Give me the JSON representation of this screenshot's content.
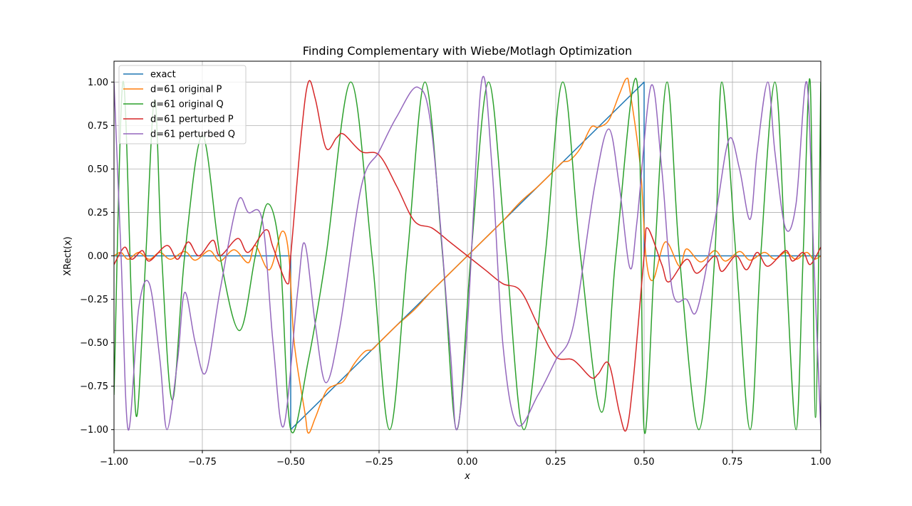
{
  "chart_data": {
    "type": "line",
    "title": "Finding Complementary with Wiebe/Motlagh Optimization",
    "xlabel": "x",
    "ylabel": "XRect(x)",
    "xlim": [
      -1.0,
      1.0
    ],
    "ylim": [
      -1.12,
      1.12
    ],
    "xticks": [
      -1.0,
      -0.75,
      -0.5,
      -0.25,
      0.0,
      0.25,
      0.5,
      0.75,
      1.0
    ],
    "xtick_labels": [
      "−1.00",
      "−0.75",
      "−0.50",
      "−0.25",
      "0.00",
      "0.25",
      "0.50",
      "0.75",
      "1.00"
    ],
    "yticks": [
      -1.0,
      -0.75,
      -0.5,
      -0.25,
      0.0,
      0.25,
      0.5,
      0.75,
      1.0
    ],
    "ytick_labels": [
      "−1.00",
      "−0.75",
      "−0.50",
      "−0.25",
      "0.00",
      "0.25",
      "0.50",
      "0.75",
      "1.00"
    ],
    "grid": true,
    "legend_position": "top-left",
    "series": [
      {
        "name": "exact",
        "color": "#1f77b4",
        "points": [
          [
            -1.0,
            0
          ],
          [
            -0.5,
            0
          ],
          [
            -0.5,
            -1.0
          ],
          [
            0.5,
            1.0
          ],
          [
            0.5,
            0
          ],
          [
            1.0,
            0
          ]
        ]
      },
      {
        "name": "d=61 original P",
        "color": "#ff7f0e",
        "points": [
          [
            -1.0,
            0
          ],
          [
            -0.98,
            0.02
          ],
          [
            -0.96,
            -0.02
          ],
          [
            -0.93,
            0.02
          ],
          [
            -0.9,
            -0.02
          ],
          [
            -0.87,
            0.02
          ],
          [
            -0.84,
            -0.02
          ],
          [
            -0.8,
            0.025
          ],
          [
            -0.77,
            -0.025
          ],
          [
            -0.73,
            0.03
          ],
          [
            -0.7,
            -0.03
          ],
          [
            -0.66,
            0.035
          ],
          [
            -0.62,
            -0.04
          ],
          [
            -0.6,
            0.06
          ],
          [
            -0.56,
            -0.08
          ],
          [
            -0.525,
            0.14
          ],
          [
            -0.505,
            0.0
          ],
          [
            -0.49,
            -0.5
          ],
          [
            -0.46,
            -0.9
          ],
          [
            -0.45,
            -1.02
          ],
          [
            -0.43,
            -0.93
          ],
          [
            -0.4,
            -0.78
          ],
          [
            -0.37,
            -0.74
          ],
          [
            -0.35,
            -0.72
          ],
          [
            -0.32,
            -0.62
          ],
          [
            -0.29,
            -0.55
          ],
          [
            -0.27,
            -0.54
          ],
          [
            -0.25,
            -0.5
          ],
          [
            -0.2,
            -0.4
          ],
          [
            -0.15,
            -0.31
          ],
          [
            -0.1,
            -0.2
          ],
          [
            -0.05,
            -0.1
          ],
          [
            0.0,
            0.0
          ],
          [
            0.05,
            0.1
          ],
          [
            0.1,
            0.2
          ],
          [
            0.15,
            0.31
          ],
          [
            0.2,
            0.4
          ],
          [
            0.25,
            0.5
          ],
          [
            0.27,
            0.54
          ],
          [
            0.29,
            0.55
          ],
          [
            0.32,
            0.62
          ],
          [
            0.35,
            0.74
          ],
          [
            0.37,
            0.74
          ],
          [
            0.4,
            0.78
          ],
          [
            0.43,
            0.93
          ],
          [
            0.45,
            1.02
          ],
          [
            0.46,
            0.95
          ],
          [
            0.49,
            0.5
          ],
          [
            0.505,
            0.0
          ],
          [
            0.525,
            -0.14
          ],
          [
            0.56,
            0.08
          ],
          [
            0.6,
            -0.06
          ],
          [
            0.62,
            0.04
          ],
          [
            0.66,
            -0.035
          ],
          [
            0.7,
            0.03
          ],
          [
            0.73,
            -0.03
          ],
          [
            0.77,
            0.025
          ],
          [
            0.8,
            -0.025
          ],
          [
            0.84,
            0.02
          ],
          [
            0.87,
            -0.02
          ],
          [
            0.9,
            0.02
          ],
          [
            0.93,
            -0.02
          ],
          [
            0.96,
            0.02
          ],
          [
            0.98,
            -0.02
          ],
          [
            1.0,
            0
          ]
        ]
      },
      {
        "name": "d=61 original Q",
        "color": "#2ca02c",
        "points": [
          [
            -1.0,
            -0.8
          ],
          [
            -0.975,
            1.0
          ],
          [
            -0.95,
            -0.3
          ],
          [
            -0.935,
            -0.92
          ],
          [
            -0.91,
            0.0
          ],
          [
            -0.885,
            0.9
          ],
          [
            -0.865,
            0.0
          ],
          [
            -0.835,
            -0.83
          ],
          [
            -0.8,
            0.0
          ],
          [
            -0.75,
            0.69
          ],
          [
            -0.7,
            0.0
          ],
          [
            -0.645,
            -0.43
          ],
          [
            -0.6,
            0.0
          ],
          [
            -0.565,
            0.3
          ],
          [
            -0.53,
            0.0
          ],
          [
            -0.5,
            -1.0
          ],
          [
            -0.45,
            -0.6
          ],
          [
            -0.4,
            0.0
          ],
          [
            -0.33,
            1.0
          ],
          [
            -0.27,
            0.0
          ],
          [
            -0.22,
            -1.0
          ],
          [
            -0.17,
            0.0
          ],
          [
            -0.12,
            1.0
          ],
          [
            -0.07,
            0.0
          ],
          [
            -0.03,
            -1.0
          ],
          [
            0.01,
            0.0
          ],
          [
            0.06,
            1.0
          ],
          [
            0.11,
            0.0
          ],
          [
            0.16,
            -1.0
          ],
          [
            0.22,
            0.0
          ],
          [
            0.27,
            1.0
          ],
          [
            0.32,
            0.0
          ],
          [
            0.38,
            -0.9
          ],
          [
            0.42,
            0.0
          ],
          [
            0.48,
            1.0
          ],
          [
            0.5,
            -1.0
          ],
          [
            0.53,
            0.0
          ],
          [
            0.565,
            1.0
          ],
          [
            0.6,
            0.0
          ],
          [
            0.655,
            -1.0
          ],
          [
            0.7,
            0.0
          ],
          [
            0.72,
            1.0
          ],
          [
            0.76,
            0.0
          ],
          [
            0.8,
            -1.0
          ],
          [
            0.83,
            0.0
          ],
          [
            0.87,
            1.0
          ],
          [
            0.9,
            0.0
          ],
          [
            0.93,
            -1.0
          ],
          [
            0.95,
            0.0
          ],
          [
            0.97,
            1.0
          ],
          [
            0.985,
            -0.93
          ],
          [
            1.0,
            1.0
          ]
        ]
      },
      {
        "name": "d=61 perturbed P",
        "color": "#d62728",
        "points": [
          [
            -1.0,
            -0.05
          ],
          [
            -0.97,
            0.05
          ],
          [
            -0.95,
            -0.02
          ],
          [
            -0.92,
            0.03
          ],
          [
            -0.9,
            -0.03
          ],
          [
            -0.85,
            0.06
          ],
          [
            -0.82,
            -0.02
          ],
          [
            -0.79,
            0.08
          ],
          [
            -0.76,
            0.0
          ],
          [
            -0.72,
            0.09
          ],
          [
            -0.7,
            0.0
          ],
          [
            -0.65,
            0.1
          ],
          [
            -0.62,
            0.02
          ],
          [
            -0.57,
            0.15
          ],
          [
            -0.55,
            0.05
          ],
          [
            -0.51,
            -0.16
          ],
          [
            -0.5,
            0.0
          ],
          [
            -0.47,
            0.7
          ],
          [
            -0.45,
            1.0
          ],
          [
            -0.43,
            0.9
          ],
          [
            -0.4,
            0.62
          ],
          [
            -0.37,
            0.68
          ],
          [
            -0.35,
            0.7
          ],
          [
            -0.3,
            0.6
          ],
          [
            -0.25,
            0.58
          ],
          [
            -0.2,
            0.4
          ],
          [
            -0.15,
            0.2
          ],
          [
            -0.1,
            0.16
          ],
          [
            -0.05,
            0.08
          ],
          [
            0.0,
            0.0
          ],
          [
            0.05,
            -0.08
          ],
          [
            0.1,
            -0.16
          ],
          [
            0.15,
            -0.2
          ],
          [
            0.2,
            -0.4
          ],
          [
            0.25,
            -0.58
          ],
          [
            0.3,
            -0.6
          ],
          [
            0.35,
            -0.7
          ],
          [
            0.37,
            -0.68
          ],
          [
            0.4,
            -0.62
          ],
          [
            0.43,
            -0.9
          ],
          [
            0.45,
            -1.0
          ],
          [
            0.47,
            -0.7
          ],
          [
            0.5,
            0.0
          ],
          [
            0.51,
            0.16
          ],
          [
            0.55,
            -0.05
          ],
          [
            0.57,
            -0.15
          ],
          [
            0.62,
            -0.02
          ],
          [
            0.65,
            -0.1
          ],
          [
            0.7,
            0.0
          ],
          [
            0.72,
            -0.09
          ],
          [
            0.76,
            0.0
          ],
          [
            0.79,
            -0.08
          ],
          [
            0.82,
            0.02
          ],
          [
            0.85,
            -0.06
          ],
          [
            0.9,
            0.03
          ],
          [
            0.92,
            -0.03
          ],
          [
            0.95,
            0.02
          ],
          [
            0.97,
            -0.05
          ],
          [
            1.0,
            0.05
          ]
        ]
      },
      {
        "name": "d=61 perturbed Q",
        "color": "#9467bd",
        "points": [
          [
            -1.0,
            1.0
          ],
          [
            -0.98,
            0.0
          ],
          [
            -0.96,
            -1.0
          ],
          [
            -0.93,
            -0.3
          ],
          [
            -0.9,
            -0.16
          ],
          [
            -0.87,
            -0.6
          ],
          [
            -0.85,
            -1.0
          ],
          [
            -0.82,
            -0.6
          ],
          [
            -0.8,
            -0.21
          ],
          [
            -0.77,
            -0.5
          ],
          [
            -0.74,
            -0.67
          ],
          [
            -0.7,
            -0.2
          ],
          [
            -0.65,
            0.31
          ],
          [
            -0.62,
            0.25
          ],
          [
            -0.58,
            0.2
          ],
          [
            -0.55,
            -0.5
          ],
          [
            -0.52,
            -0.98
          ],
          [
            -0.48,
            -0.2
          ],
          [
            -0.46,
            0.07
          ],
          [
            -0.43,
            -0.4
          ],
          [
            -0.4,
            -0.73
          ],
          [
            -0.36,
            -0.4
          ],
          [
            -0.3,
            0.4
          ],
          [
            -0.25,
            0.6
          ],
          [
            -0.2,
            0.8
          ],
          [
            -0.14,
            0.97
          ],
          [
            -0.1,
            0.7
          ],
          [
            -0.05,
            -0.5
          ],
          [
            -0.03,
            -1.0
          ],
          [
            0.0,
            -0.4
          ],
          [
            0.04,
            1.0
          ],
          [
            0.07,
            0.5
          ],
          [
            0.1,
            -0.5
          ],
          [
            0.14,
            -0.97
          ],
          [
            0.2,
            -0.8
          ],
          [
            0.25,
            -0.6
          ],
          [
            0.3,
            -0.4
          ],
          [
            0.36,
            0.4
          ],
          [
            0.4,
            0.73
          ],
          [
            0.43,
            0.4
          ],
          [
            0.46,
            -0.07
          ],
          [
            0.48,
            0.2
          ],
          [
            0.52,
            0.98
          ],
          [
            0.55,
            0.5
          ],
          [
            0.58,
            -0.2
          ],
          [
            0.62,
            -0.25
          ],
          [
            0.65,
            -0.31
          ],
          [
            0.7,
            0.2
          ],
          [
            0.74,
            0.67
          ],
          [
            0.77,
            0.5
          ],
          [
            0.8,
            0.21
          ],
          [
            0.82,
            0.6
          ],
          [
            0.85,
            1.0
          ],
          [
            0.87,
            0.6
          ],
          [
            0.9,
            0.16
          ],
          [
            0.93,
            0.3
          ],
          [
            0.96,
            1.0
          ],
          [
            0.98,
            0.0
          ],
          [
            1.0,
            -1.0
          ]
        ]
      }
    ]
  }
}
